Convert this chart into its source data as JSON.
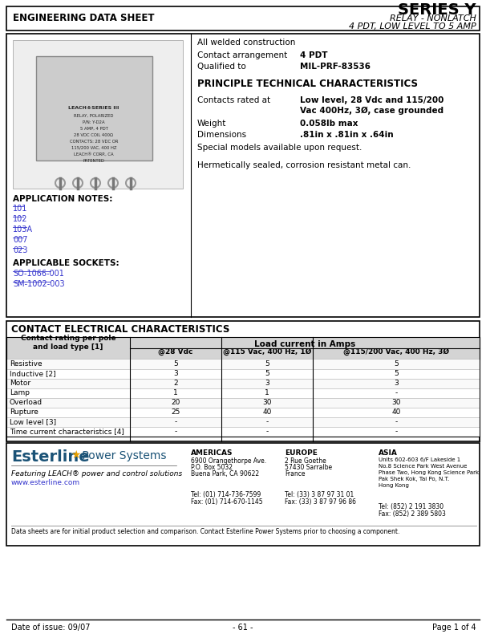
{
  "title_left": "ENGINEERING DATA SHEET",
  "title_right_main": "SERIES Y",
  "title_right_sub1": "RELAY - NONLATCH",
  "title_right_sub2": "4 PDT, LOW LEVEL TO 5 AMP",
  "section1_features": [
    "All welded construction"
  ],
  "contact_arrangement_label": "Contact arrangement",
  "contact_arrangement_value": "4 PDT",
  "qualified_label": "Qualified to",
  "qualified_value": "MIL-PRF-83536",
  "ptc_title": "PRINCIPLE TECHNICAL CHARACTERISTICS",
  "contacts_label": "Contacts rated at",
  "contacts_value_1": "Low level, 28 Vdc and 115/200",
  "contacts_value_2": "Vac 400Hz, 3Ø, case grounded",
  "weight_label": "Weight",
  "weight_value": "0.058lb max",
  "dimensions_label": "Dimensions",
  "dimensions_value": ".81in x .81in x .64in",
  "special_models": "Special models available upon request.",
  "hermetic": "Hermetically sealed, corrosion resistant metal can.",
  "app_notes_title": "APPLICATION NOTES:",
  "app_notes": [
    "101",
    "102",
    "103A",
    "007",
    "023"
  ],
  "sockets_title": "APPLICABLE SOCKETS:",
  "sockets": [
    "SO-1066-001",
    "SM-1002-003"
  ],
  "cec_title": "CONTACT ELECTRICAL CHARACTERISTICS",
  "table_header_col1": "Contact rating per pole\nand load type [1]",
  "table_header_col2": "@28 Vdc",
  "table_header_col3": "@115 Vac, 400 Hz, 1Ø",
  "table_header_col4": "@115/200 Vac, 400 Hz, 3Ø",
  "table_header_main": "Load current in Amps",
  "table_rows": [
    [
      "Resistive",
      "5",
      "5",
      "5"
    ],
    [
      "Inductive [2]",
      "3",
      "5",
      "5"
    ],
    [
      "Motor",
      "2",
      "3",
      "3"
    ],
    [
      "Lamp",
      "1",
      "1",
      "-"
    ],
    [
      "Overload",
      "20",
      "30",
      "30"
    ],
    [
      "Rupture",
      "25",
      "40",
      "40"
    ],
    [
      "Low level [3]",
      "-",
      "-",
      "-"
    ],
    [
      "Time current characteristics [4]",
      "-",
      "-",
      "-"
    ]
  ],
  "footer_company": "Esterline",
  "footer_star": "★",
  "footer_power": " Power Systems",
  "footer_tag": "Featuring LEACH® power and control solutions",
  "footer_web": "www.esterline.com",
  "footer_americas_title": "AMERICAS",
  "footer_americas_l1": "6900 Orangethorpe Ave.",
  "footer_americas_l2": "P.O. Box 5032",
  "footer_americas_l3": "Buena Park, CA 90622",
  "footer_americas_tel": "Tel: (01) 714-736-7599",
  "footer_americas_fax": "Fax: (01) 714-670-1145",
  "footer_europe_title": "EUROPE",
  "footer_europe_l1": "2 Rue Goethe",
  "footer_europe_l2": "57430 Sarralbe",
  "footer_europe_l3": "France",
  "footer_europe_tel": "Tel: (33) 3 87 97 31 01",
  "footer_europe_fax": "Fax: (33) 3 87 97 96 86",
  "footer_asia_title": "ASIA",
  "footer_asia_l1": "Units 602-603 6/F Lakeside 1",
  "footer_asia_l2": "No.8 Science Park West Avenue",
  "footer_asia_l3": "Phase Two, Hong Kong Science Park",
  "footer_asia_l4": "Pak Shek Kok, Tai Po, N.T.",
  "footer_asia_l5": "Hong Kong",
  "footer_asia_tel": "Tel: (852) 2 191 3830",
  "footer_asia_fax": "Fax: (852) 2 389 5803",
  "footer_disclaimer": "Data sheets are for initial product selection and comparison. Contact Esterline Power Systems prior to choosing a component.",
  "bottom_date": "Date of issue: 09/07",
  "bottom_page_num": "- 61 -",
  "bottom_page": "Page 1 of 4",
  "bg_color": "#ffffff",
  "border_color": "#000000",
  "link_color": "#3333cc",
  "text_color": "#000000",
  "esterline_blue": "#1a5276"
}
